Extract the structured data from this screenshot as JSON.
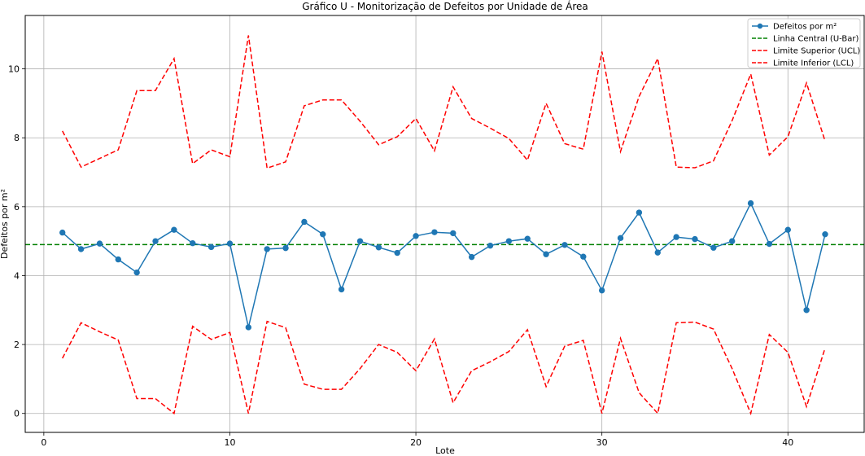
{
  "chart_data": {
    "type": "line",
    "title": "Gráfico U - Monitorização de Defeitos por Unidade de Área",
    "xlabel": "Lote",
    "ylabel": "Defeitos por m²",
    "xlim": [
      -1,
      44.1
    ],
    "ylim": [
      -0.55,
      11.55
    ],
    "xticks": [
      0,
      10,
      20,
      30,
      40
    ],
    "yticks": [
      0,
      2,
      4,
      6,
      8,
      10
    ],
    "grid": true,
    "legend_position": "top-right",
    "x": [
      1,
      2,
      3,
      4,
      5,
      6,
      7,
      8,
      9,
      10,
      11,
      12,
      13,
      14,
      15,
      16,
      17,
      18,
      19,
      20,
      21,
      22,
      23,
      24,
      25,
      26,
      27,
      28,
      29,
      30,
      31,
      32,
      33,
      34,
      35,
      36,
      37,
      38,
      39,
      40,
      41,
      42
    ],
    "series": [
      {
        "name": "Defeitos por m²",
        "color": "#1f77b4",
        "style": "solid-marker",
        "values": [
          5.25,
          4.77,
          4.93,
          4.47,
          4.09,
          5.0,
          5.33,
          4.94,
          4.83,
          4.93,
          2.5,
          4.77,
          4.8,
          5.56,
          5.2,
          3.6,
          5.0,
          4.82,
          4.66,
          5.15,
          5.26,
          5.23,
          4.54,
          4.87,
          5.0,
          5.07,
          4.62,
          4.89,
          4.55,
          3.57,
          5.09,
          5.83,
          4.67,
          5.12,
          5.06,
          4.81,
          5.0,
          6.1,
          4.92,
          5.33,
          3.0,
          5.2
        ]
      },
      {
        "name": "Linha Central (U-Bar)",
        "color": "#008000",
        "style": "dashed",
        "values": [
          4.9,
          4.9,
          4.9,
          4.9,
          4.9,
          4.9,
          4.9,
          4.9,
          4.9,
          4.9,
          4.9,
          4.9,
          4.9,
          4.9,
          4.9,
          4.9,
          4.9,
          4.9,
          4.9,
          4.9,
          4.9,
          4.9,
          4.9,
          4.9,
          4.9,
          4.9,
          4.9,
          4.9,
          4.9,
          4.9,
          4.9,
          4.9,
          4.9,
          4.9,
          4.9,
          4.9,
          4.9,
          4.9,
          4.9,
          4.9,
          4.9,
          4.9
        ]
      },
      {
        "name": "Limite Superior (UCL)",
        "color": "#ff0000",
        "style": "dashed",
        "values": [
          8.2,
          7.15,
          7.4,
          7.65,
          9.37,
          9.37,
          10.3,
          7.25,
          7.65,
          7.45,
          10.97,
          7.12,
          7.3,
          8.93,
          9.1,
          9.1,
          8.48,
          7.8,
          8.03,
          8.56,
          7.62,
          9.48,
          8.56,
          8.28,
          7.98,
          7.35,
          9.0,
          7.83,
          7.67,
          10.5,
          7.6,
          9.2,
          10.3,
          7.15,
          7.13,
          7.33,
          8.5,
          9.85,
          7.5,
          8.03,
          9.59,
          7.9
        ]
      },
      {
        "name": "Limite Inferior (LCL)",
        "color": "#ff0000",
        "style": "dashed",
        "values": [
          1.6,
          2.63,
          2.37,
          2.13,
          0.43,
          0.43,
          0.0,
          2.53,
          2.15,
          2.35,
          0.0,
          2.67,
          2.49,
          0.85,
          0.7,
          0.7,
          1.3,
          2.0,
          1.77,
          1.24,
          2.16,
          0.31,
          1.24,
          1.5,
          1.8,
          2.43,
          0.78,
          1.95,
          2.12,
          0.0,
          2.18,
          0.6,
          0.0,
          2.63,
          2.65,
          2.45,
          1.3,
          0.0,
          2.29,
          1.77,
          0.2,
          1.9
        ]
      }
    ]
  }
}
